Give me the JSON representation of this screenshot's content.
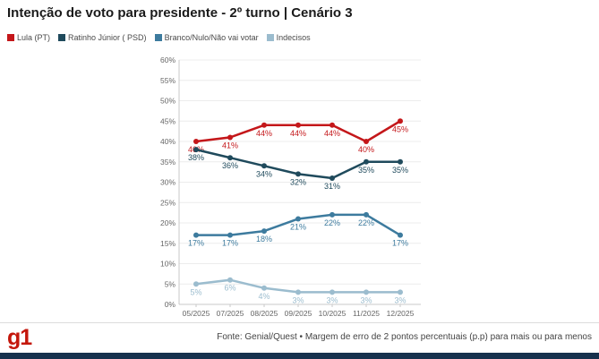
{
  "header": {
    "title": "Intenção de voto para presidente - 2º turno | Cenário 3"
  },
  "chart_data": {
    "type": "line",
    "title": "Intenção de voto para presidente - 2º turno | Cenário 3",
    "categories": [
      "05/2025",
      "07/2025",
      "08/2025",
      "09/2025",
      "10/2025",
      "11/2025",
      "12/2025"
    ],
    "series": [
      {
        "name": "Lula (PT)",
        "color": "#c4171a",
        "values": [
          40,
          41,
          44,
          44,
          44,
          40,
          45
        ]
      },
      {
        "name": "Ratinho Júnior ( PSD)",
        "color": "#1f4a5c",
        "values": [
          38,
          36,
          34,
          32,
          31,
          35,
          35
        ]
      },
      {
        "name": "Branco/Nulo/Não vai votar",
        "color": "#3d7b9e",
        "values": [
          17,
          17,
          18,
          21,
          22,
          22,
          17
        ]
      },
      {
        "name": "Indecisos",
        "color": "#9bbcce",
        "values": [
          5,
          6,
          4,
          3,
          3,
          3,
          3
        ]
      }
    ],
    "ylim": [
      0,
      60
    ],
    "ytick_step": 5,
    "ytick_suffix": "%",
    "value_label_suffix": "%",
    "grid": true,
    "legend_position": "top-left",
    "value_labels": true,
    "axis_text_color": "#666666",
    "grid_color": "#ececec",
    "axis_line_color": "#c9c9c9"
  },
  "footer": {
    "logo": "g1",
    "source": "Fonte: Genial/Quest • Margem de erro de 2 pontos percentuais (p.p) para mais ou para menos"
  },
  "colors": {
    "accent_red": "#c4170c",
    "bottom_bar": "#16314d"
  }
}
